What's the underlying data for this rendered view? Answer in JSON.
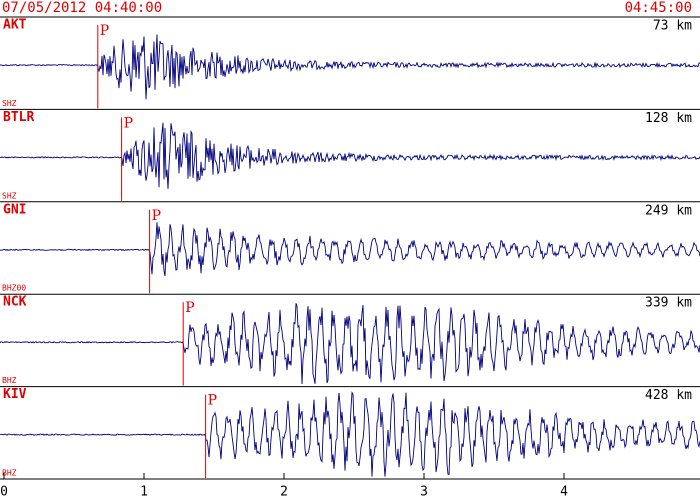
{
  "header": {
    "start": "07/05/2012 04:40:00",
    "end": "04:45:00"
  },
  "chart_data": {
    "type": "seismogram",
    "xlim": [
      0,
      5
    ],
    "xticks": [
      0,
      1,
      2,
      3,
      4
    ],
    "phase_label": "P",
    "traces": [
      {
        "station": "AKT",
        "distance": "73 km",
        "component": "SHZ",
        "p_arrival": 0.67
      },
      {
        "station": "BTLR",
        "distance": "128 km",
        "component": "SHZ",
        "p_arrival": 0.84
      },
      {
        "station": "GNI",
        "distance": "249 km",
        "component": "BHZ00",
        "p_arrival": 1.04
      },
      {
        "station": "NCK",
        "distance": "339 km",
        "component": "BHZ",
        "p_arrival": 1.28
      },
      {
        "station": "KIV",
        "distance": "428 km",
        "component": "BHZ",
        "p_arrival": 1.44
      }
    ]
  }
}
